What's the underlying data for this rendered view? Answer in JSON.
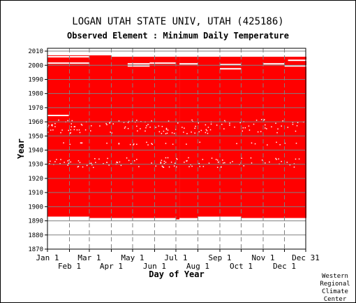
{
  "header": {
    "title": "LOGAN UTAH STATE UNIV, UTAH   (425186)",
    "subtitle": "Observed Element : Minimum Daily Temperature"
  },
  "footer": {
    "credit_lines": [
      "Western",
      "Regional",
      "Climate",
      "Center"
    ]
  },
  "colors": {
    "data_fill": "#ff0000",
    "gap": "#ffffff",
    "grid": "#808080",
    "axis": "#000000",
    "background": "#ffffff"
  },
  "chart_data": {
    "type": "heatmap",
    "xlabel": "Day of Year",
    "ylabel": "Year",
    "xlim": [
      1,
      365
    ],
    "ylim": [
      1870,
      2012
    ],
    "x_ticks_row1": [
      {
        "label": "Jan 1",
        "day": 1
      },
      {
        "label": "Mar 1",
        "day": 60
      },
      {
        "label": "May 1",
        "day": 121
      },
      {
        "label": "Jul 1",
        "day": 182
      },
      {
        "label": "Sep 1",
        "day": 244
      },
      {
        "label": "Nov 1",
        "day": 305
      },
      {
        "label": "Dec 31",
        "day": 365
      }
    ],
    "x_ticks_row2": [
      {
        "label": "Feb 1",
        "day": 32
      },
      {
        "label": "Apr 1",
        "day": 91
      },
      {
        "label": "Jun 1",
        "day": 152
      },
      {
        "label": "Aug 1",
        "day": 213
      },
      {
        "label": "Oct 1",
        "day": 274
      },
      {
        "label": "Dec 1",
        "day": 335
      }
    ],
    "y_ticks": [
      1870,
      1880,
      1890,
      1900,
      1910,
      1920,
      1930,
      1940,
      1950,
      1960,
      1970,
      1980,
      1990,
      2000,
      2010
    ],
    "grid": true,
    "legend": "none",
    "data_blocks": [
      {
        "start_day": 1,
        "end_day": 59,
        "start_year": 1893,
        "end_year": 2006
      },
      {
        "start_day": 60,
        "end_day": 90,
        "start_year": 1892,
        "end_year": 2006
      },
      {
        "start_day": 91,
        "end_day": 181,
        "start_year": 1892,
        "end_year": 2005
      },
      {
        "start_day": 182,
        "end_day": 186,
        "start_year": 1891,
        "end_year": 2005
      },
      {
        "start_day": 187,
        "end_day": 212,
        "start_year": 1892,
        "end_year": 2005
      },
      {
        "start_day": 213,
        "end_day": 273,
        "start_year": 1893,
        "end_year": 2005
      },
      {
        "start_day": 274,
        "end_day": 365,
        "start_year": 1892,
        "end_year": 2005
      }
    ],
    "missing_periods": [
      {
        "year": 1964.5,
        "start_day": 1,
        "end_day": 30
      },
      {
        "year": 2001.5,
        "start_day": 1,
        "end_day": 59
      },
      {
        "year": 2001,
        "start_day": 114,
        "end_day": 144
      },
      {
        "year": 1999.5,
        "start_day": 114,
        "end_day": 144
      },
      {
        "year": 2001.5,
        "start_day": 145,
        "end_day": 181
      },
      {
        "year": 2001,
        "start_day": 187,
        "end_day": 212
      },
      {
        "year": 2000.5,
        "start_day": 244,
        "end_day": 273
      },
      {
        "year": 1997.5,
        "start_day": 244,
        "end_day": 273
      },
      {
        "year": 2001,
        "start_day": 305,
        "end_day": 334
      },
      {
        "year": 2003.5,
        "start_day": 340,
        "end_day": 365
      },
      {
        "year": 1999.5,
        "start_day": 335,
        "end_day": 365
      },
      {
        "year": 2006,
        "start_day": 1,
        "end_day": 59
      }
    ],
    "scattered_missing_year_bands": [
      1929,
      1931,
      1932,
      1934,
      1945,
      1953,
      1955,
      1957,
      1959,
      1961
    ]
  }
}
